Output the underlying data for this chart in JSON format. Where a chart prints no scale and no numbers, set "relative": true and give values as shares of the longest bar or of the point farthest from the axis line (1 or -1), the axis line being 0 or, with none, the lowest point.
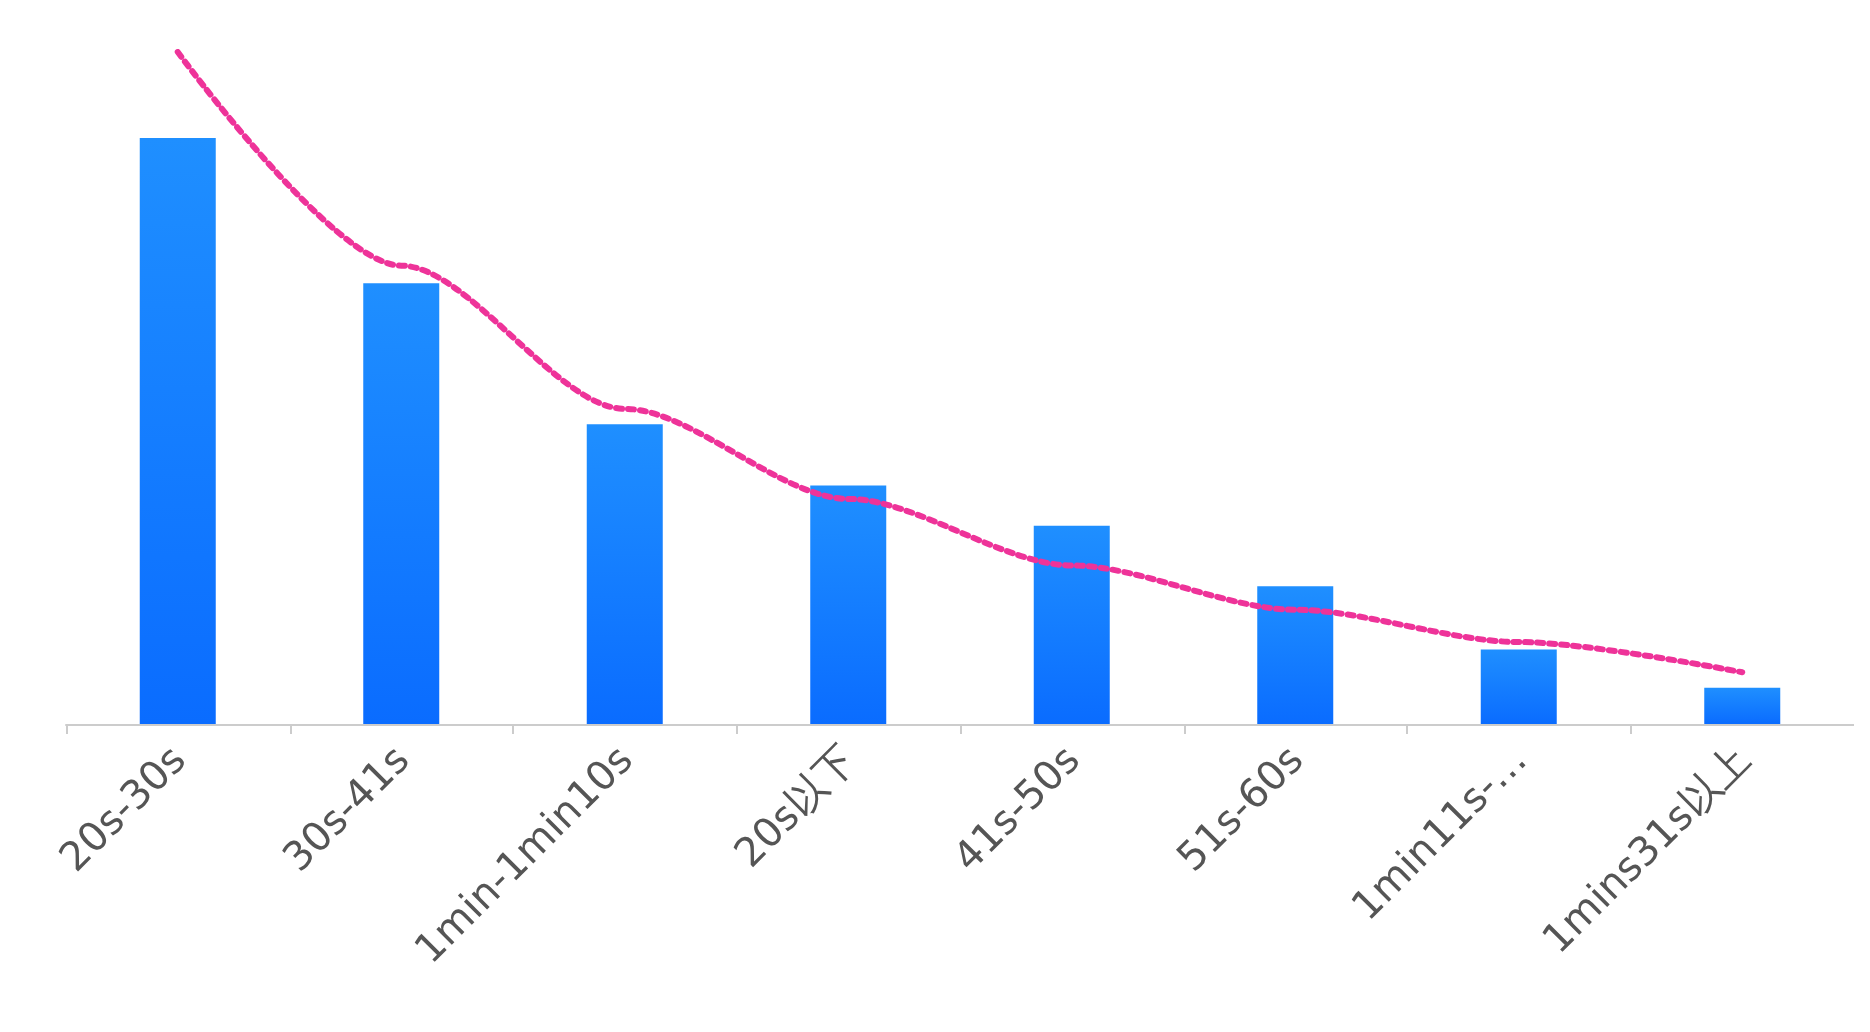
{
  "chart_data": {
    "type": "bar",
    "relative": true,
    "grid": false,
    "categories": [
      "20s-30s",
      "30s-41s",
      "1min-1min10s",
      "20s以下",
      "41s-50s",
      "51s-60s",
      "1min11s-…",
      "1mins31s以上"
    ],
    "series": [
      {
        "color": "#1f8fff",
        "values": [
          0.872,
          0.656,
          0.446,
          0.355,
          0.295,
          0.205,
          0.111,
          0.054
        ]
      },
      {
        "type": "line",
        "color": "#ee3399",
        "line_style": "dotted",
        "marker": "none",
        "values": [
          1,
          0.682,
          0.469,
          0.335,
          0.236,
          0.17,
          0.122,
          0.077
        ]
      }
    ]
  }
}
